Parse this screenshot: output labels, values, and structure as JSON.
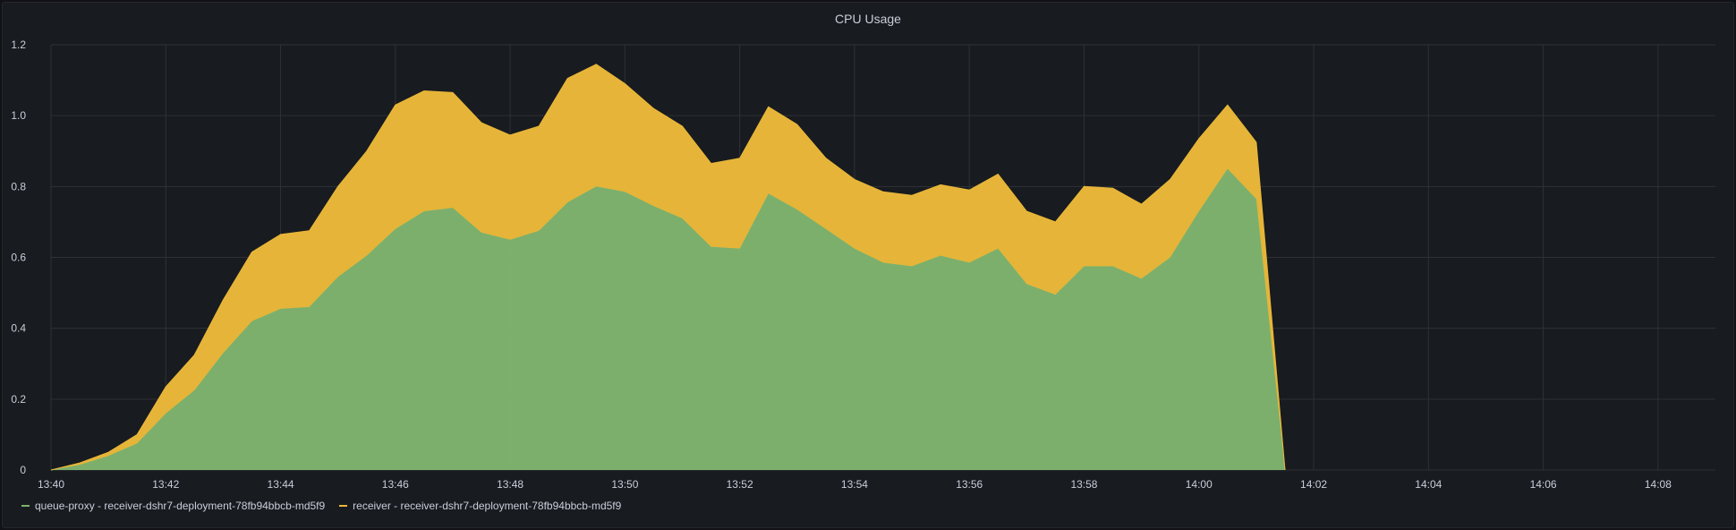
{
  "panel": {
    "title": "CPU Usage"
  },
  "chart_data": {
    "type": "area",
    "stacked": true,
    "title": "CPU Usage",
    "xlabel": "",
    "ylabel": "",
    "ylim": [
      0,
      1.2
    ],
    "yticks": [
      "0",
      "0.2",
      "0.4",
      "0.6",
      "0.8",
      "1.0",
      "1.2"
    ],
    "xlim": [
      "13:40",
      "14:09"
    ],
    "xticks": [
      "13:40",
      "13:42",
      "13:44",
      "13:46",
      "13:48",
      "13:50",
      "13:52",
      "13:54",
      "13:56",
      "13:58",
      "14:00",
      "14:02",
      "14:04",
      "14:06",
      "14:08"
    ],
    "grid": true,
    "legend_position": "bottom-left",
    "x": [
      "13:40:00",
      "13:40:30",
      "13:41:00",
      "13:41:30",
      "13:42:00",
      "13:42:30",
      "13:43:00",
      "13:43:30",
      "13:44:00",
      "13:44:30",
      "13:45:00",
      "13:45:30",
      "13:46:00",
      "13:46:30",
      "13:47:00",
      "13:47:30",
      "13:48:00",
      "13:48:30",
      "13:49:00",
      "13:49:30",
      "13:50:00",
      "13:50:30",
      "13:51:00",
      "13:51:30",
      "13:52:00",
      "13:52:30",
      "13:53:00",
      "13:53:30",
      "13:54:00",
      "13:54:30",
      "13:55:00",
      "13:55:30",
      "13:56:00",
      "13:56:30",
      "13:57:00",
      "13:57:30",
      "13:58:00",
      "13:58:30",
      "13:59:00",
      "13:59:30",
      "14:00:00",
      "14:00:30",
      "14:01:00",
      "14:01:30"
    ],
    "series": [
      {
        "name": "queue-proxy - receiver-dshr7-deployment-78fb94bbcb-md5f9",
        "color": "#7eb26d",
        "values": [
          0,
          0.015,
          0.04,
          0.075,
          0.16,
          0.225,
          0.33,
          0.42,
          0.455,
          0.46,
          0.545,
          0.605,
          0.68,
          0.73,
          0.74,
          0.67,
          0.65,
          0.675,
          0.755,
          0.8,
          0.785,
          0.745,
          0.71,
          0.63,
          0.625,
          0.78,
          0.735,
          0.68,
          0.625,
          0.585,
          0.575,
          0.605,
          0.585,
          0.625,
          0.525,
          0.495,
          0.575,
          0.575,
          0.54,
          0.6,
          0.73,
          0.85,
          0.765,
          0
        ]
      },
      {
        "name": "receiver - receiver-dshr7-deployment-78fb94bbcb-md5f9",
        "color": "#eab839",
        "values": [
          0,
          0.005,
          0.01,
          0.025,
          0.075,
          0.1,
          0.15,
          0.195,
          0.21,
          0.215,
          0.255,
          0.295,
          0.35,
          0.34,
          0.325,
          0.31,
          0.295,
          0.295,
          0.35,
          0.345,
          0.305,
          0.275,
          0.26,
          0.235,
          0.255,
          0.245,
          0.24,
          0.2,
          0.195,
          0.2,
          0.2,
          0.2,
          0.205,
          0.21,
          0.205,
          0.205,
          0.225,
          0.22,
          0.21,
          0.22,
          0.205,
          0.18,
          0.16,
          0
        ]
      }
    ]
  }
}
